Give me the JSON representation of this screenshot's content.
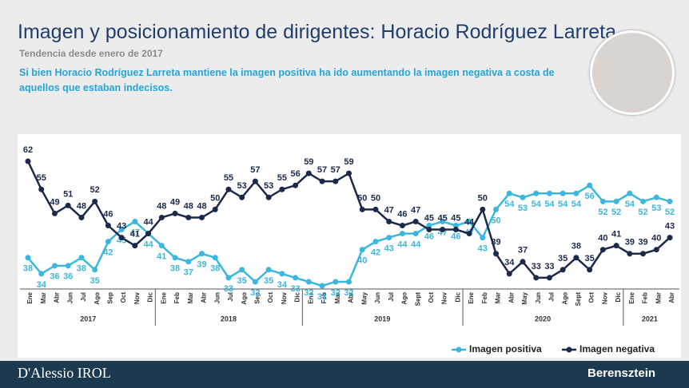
{
  "title": "Imagen y posicionamiento de dirigentes: Horacio Rodríguez Larreta",
  "subtitle": "Tendencia desde enero de 2017",
  "description": "Si bien Horacio Rodríguez Larreta mantiene la imagen positiva ha ido aumentando la imagen negativa a costa de aquellos que estaban indecisos.",
  "footer": {
    "left": "D'Alessio IROL",
    "right": "Berensztein"
  },
  "chart_data": {
    "type": "line",
    "categories": [
      "Ene",
      "Mar",
      "Abr",
      "Jun",
      "Jul",
      "Ago",
      "Sep",
      "Oct",
      "Nov",
      "Dic",
      "Ene",
      "Feb",
      "Mar",
      "Abr",
      "Jun",
      "Jul",
      "Ago",
      "Sep",
      "Oct",
      "Nov",
      "Dic",
      "Ene",
      "Feb",
      "Mar",
      "Abr",
      "May",
      "Jun",
      "Jul",
      "Ago",
      "Sept",
      "Oct",
      "Nov",
      "Dic",
      "Ene",
      "Feb",
      "Mar",
      "Abr",
      "May",
      "Jun",
      "Jul",
      "Ago",
      "Sept",
      "Oct",
      "Nov",
      "Dic",
      "Ene",
      "Feb",
      "Mar",
      "Abr"
    ],
    "years": [
      "2017",
      "2018",
      "2019",
      "2020",
      "2021"
    ],
    "series": [
      {
        "name": "Imagen positiva",
        "color": "#3bb6de",
        "values": [
          38,
          34,
          36,
          36,
          38,
          35,
          42,
          45,
          47,
          44,
          41,
          38,
          37,
          39,
          38,
          33,
          35,
          32,
          35,
          34,
          33,
          32,
          31,
          32,
          32,
          40,
          42,
          43,
          44,
          44,
          46,
          47,
          46,
          47,
          43,
          50,
          54,
          53,
          54,
          54,
          54,
          54,
          56,
          52,
          52,
          54,
          52,
          53,
          52
        ]
      },
      {
        "name": "Imagen negativa",
        "color": "#1b2a4a",
        "values": [
          62,
          55,
          49,
          51,
          48,
          52,
          46,
          43,
          41,
          44,
          48,
          49,
          48,
          48,
          50,
          55,
          53,
          57,
          53,
          55,
          56,
          59,
          57,
          57,
          59,
          50,
          50,
          47,
          46,
          47,
          45,
          45,
          45,
          44,
          50,
          39,
          34,
          37,
          33,
          33,
          35,
          38,
          35,
          40,
          41,
          39,
          39,
          40,
          43
        ]
      }
    ]
  }
}
